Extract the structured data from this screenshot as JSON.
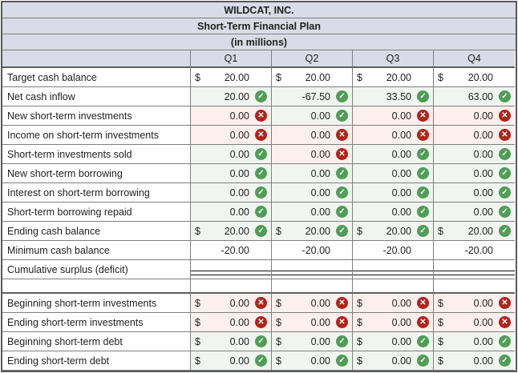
{
  "table": {
    "title": "WILDCAT, INC.",
    "subtitle": "Short-Term Financial Plan",
    "units": "(in millions)",
    "columns": [
      "Q1",
      "Q2",
      "Q3",
      "Q4"
    ],
    "icon_glyphs": {
      "check": "✓",
      "x": "✕"
    },
    "colors": {
      "header_bg": "#d9dce6",
      "correct_cell_bg": "#f0f5ef",
      "incorrect_cell_bg": "#fdefed",
      "check_green": "#4f9d57",
      "x_red": "#b02419",
      "grid_border": "#7f7f7f",
      "outer_border": "#58585a"
    },
    "rows": [
      {
        "label": "Target cash balance",
        "cells": [
          {
            "dollar": true,
            "value": "20.00",
            "icon": null
          },
          {
            "dollar": true,
            "value": "20.00",
            "icon": null
          },
          {
            "dollar": true,
            "value": "20.00",
            "icon": null
          },
          {
            "dollar": true,
            "value": "20.00",
            "icon": null
          }
        ]
      },
      {
        "label": "Net cash inflow",
        "cells": [
          {
            "value": "20.00",
            "icon": "check"
          },
          {
            "value": "-67.50",
            "icon": "check"
          },
          {
            "value": "33.50",
            "icon": "check"
          },
          {
            "value": "63.00",
            "icon": "check"
          }
        ]
      },
      {
        "label": "New short-term investments",
        "cells": [
          {
            "value": "0.00",
            "icon": "x"
          },
          {
            "value": "0.00",
            "icon": "check"
          },
          {
            "value": "0.00",
            "icon": "x"
          },
          {
            "value": "0.00",
            "icon": "x"
          }
        ]
      },
      {
        "label": "Income on short-term investments",
        "cells": [
          {
            "value": "0.00",
            "icon": "x"
          },
          {
            "value": "0.00",
            "icon": "x"
          },
          {
            "value": "0.00",
            "icon": "x"
          },
          {
            "value": "0.00",
            "icon": "x"
          }
        ]
      },
      {
        "label": "Short-term investments sold",
        "cells": [
          {
            "value": "0.00",
            "icon": "check"
          },
          {
            "value": "0.00",
            "icon": "x"
          },
          {
            "value": "0.00",
            "icon": "check"
          },
          {
            "value": "0.00",
            "icon": "check"
          }
        ]
      },
      {
        "label": "New short-term borrowing",
        "cells": [
          {
            "value": "0.00",
            "icon": "check"
          },
          {
            "value": "0.00",
            "icon": "check"
          },
          {
            "value": "0.00",
            "icon": "check"
          },
          {
            "value": "0.00",
            "icon": "check"
          }
        ]
      },
      {
        "label": "Interest on short-term borrowing",
        "cells": [
          {
            "value": "0.00",
            "icon": "check"
          },
          {
            "value": "0.00",
            "icon": "check"
          },
          {
            "value": "0.00",
            "icon": "check"
          },
          {
            "value": "0.00",
            "icon": "check"
          }
        ]
      },
      {
        "label": "Short-term borrowing repaid",
        "cells": [
          {
            "value": "0.00",
            "icon": "check"
          },
          {
            "value": "0.00",
            "icon": "check"
          },
          {
            "value": "0.00",
            "icon": "check"
          },
          {
            "value": "0.00",
            "icon": "check"
          }
        ]
      },
      {
        "label": "Ending cash balance",
        "cells": [
          {
            "dollar": true,
            "value": "20.00",
            "icon": "check"
          },
          {
            "dollar": true,
            "value": "20.00",
            "icon": "check"
          },
          {
            "dollar": true,
            "value": "20.00",
            "icon": "check"
          },
          {
            "dollar": true,
            "value": "20.00",
            "icon": "check"
          }
        ]
      },
      {
        "label": "Minimum cash balance",
        "cells": [
          {
            "value": "-20.00",
            "icon": null
          },
          {
            "value": "-20.00",
            "icon": null
          },
          {
            "value": "-20.00",
            "icon": null
          },
          {
            "value": "-20.00",
            "icon": null
          }
        ]
      },
      {
        "label": "Cumulative surplus (deficit)",
        "double_underline": true,
        "cells": [
          {
            "value": "",
            "icon": null
          },
          {
            "value": "",
            "icon": null
          },
          {
            "value": "",
            "icon": null
          },
          {
            "value": "",
            "icon": null
          }
        ]
      },
      {
        "label": "",
        "type": "spacer",
        "cells": null
      },
      {
        "label": "Beginning short-term investments",
        "cells": [
          {
            "dollar": true,
            "value": "0.00",
            "icon": "x"
          },
          {
            "dollar": true,
            "value": "0.00",
            "icon": "x"
          },
          {
            "dollar": true,
            "value": "0.00",
            "icon": "x"
          },
          {
            "dollar": true,
            "value": "0.00",
            "icon": "x"
          }
        ]
      },
      {
        "label": "Ending short-term investments",
        "cells": [
          {
            "dollar": true,
            "value": "0.00",
            "icon": "x"
          },
          {
            "dollar": true,
            "value": "0.00",
            "icon": "x"
          },
          {
            "dollar": true,
            "value": "0.00",
            "icon": "x"
          },
          {
            "dollar": true,
            "value": "0.00",
            "icon": "x"
          }
        ]
      },
      {
        "label": "Beginning short-term debt",
        "cells": [
          {
            "dollar": true,
            "value": "0.00",
            "icon": "check"
          },
          {
            "dollar": true,
            "value": "0.00",
            "icon": "check"
          },
          {
            "dollar": true,
            "value": "0.00",
            "icon": "check"
          },
          {
            "dollar": true,
            "value": "0.00",
            "icon": "check"
          }
        ]
      },
      {
        "label": "Ending short-term debt",
        "cells": [
          {
            "dollar": true,
            "value": "0.00",
            "icon": "check"
          },
          {
            "dollar": true,
            "value": "0.00",
            "icon": "check"
          },
          {
            "dollar": true,
            "value": "0.00",
            "icon": "check"
          },
          {
            "dollar": true,
            "value": "0.00",
            "icon": "check"
          }
        ]
      }
    ]
  }
}
